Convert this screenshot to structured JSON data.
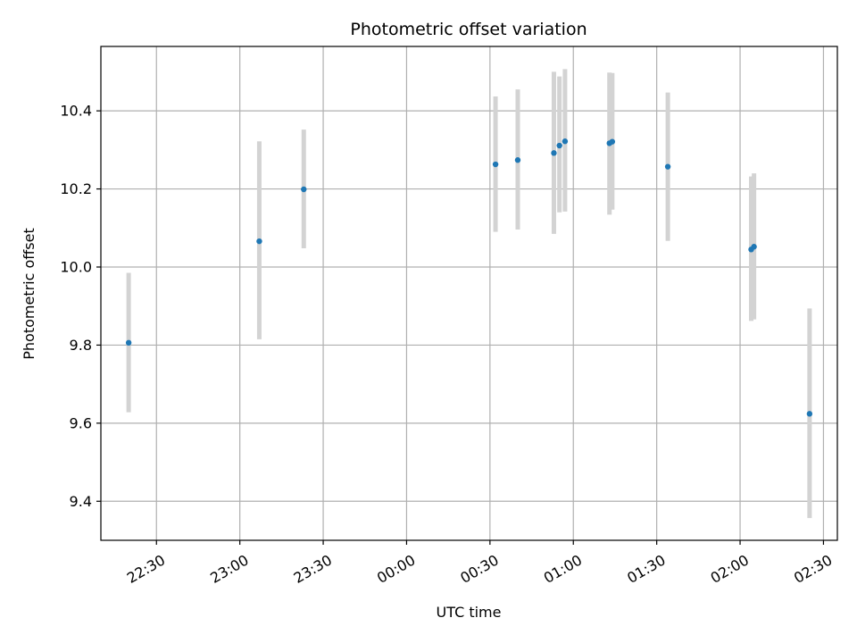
{
  "chart_data": {
    "type": "scatter",
    "title": "Photometric offset variation",
    "xlabel": "UTC time",
    "ylabel": "Photometric offset",
    "x_axis_kind": "time",
    "xlim": [
      "22:10",
      "02:35"
    ],
    "ylim": [
      9.3,
      10.565
    ],
    "grid": true,
    "x_ticks": [
      "22:30",
      "23:00",
      "23:30",
      "00:00",
      "00:30",
      "01:00",
      "01:30",
      "02:00",
      "02:30"
    ],
    "y_ticks": [
      "9.4",
      "9.6",
      "9.8",
      "10.0",
      "10.2",
      "10.4"
    ],
    "marker_color": "#1f77b4",
    "errorbar_color": "#d3d3d3",
    "points": [
      {
        "x": "22:20",
        "y": 9.806,
        "y_low": 9.628,
        "y_high": 9.985
      },
      {
        "x": "23:07",
        "y": 10.066,
        "y_low": 9.815,
        "y_high": 10.322
      },
      {
        "x": "23:23",
        "y": 10.199,
        "y_low": 10.048,
        "y_high": 10.352
      },
      {
        "x": "00:32",
        "y": 10.263,
        "y_low": 10.09,
        "y_high": 10.437
      },
      {
        "x": "00:40",
        "y": 10.274,
        "y_low": 10.096,
        "y_high": 10.455
      },
      {
        "x": "00:53",
        "y": 10.292,
        "y_low": 10.085,
        "y_high": 10.5
      },
      {
        "x": "00:55",
        "y": 10.311,
        "y_low": 10.14,
        "y_high": 10.488
      },
      {
        "x": "00:57",
        "y": 10.322,
        "y_low": 10.142,
        "y_high": 10.507
      },
      {
        "x": "01:13",
        "y": 10.317,
        "y_low": 10.134,
        "y_high": 10.498
      },
      {
        "x": "01:14",
        "y": 10.321,
        "y_low": 10.147,
        "y_high": 10.497
      },
      {
        "x": "01:34",
        "y": 10.257,
        "y_low": 10.067,
        "y_high": 10.447
      },
      {
        "x": "02:04",
        "y": 10.045,
        "y_low": 9.862,
        "y_high": 10.232
      },
      {
        "x": "02:05",
        "y": 10.052,
        "y_low": 9.866,
        "y_high": 10.24
      },
      {
        "x": "02:25",
        "y": 9.624,
        "y_low": 9.357,
        "y_high": 9.894
      }
    ]
  }
}
